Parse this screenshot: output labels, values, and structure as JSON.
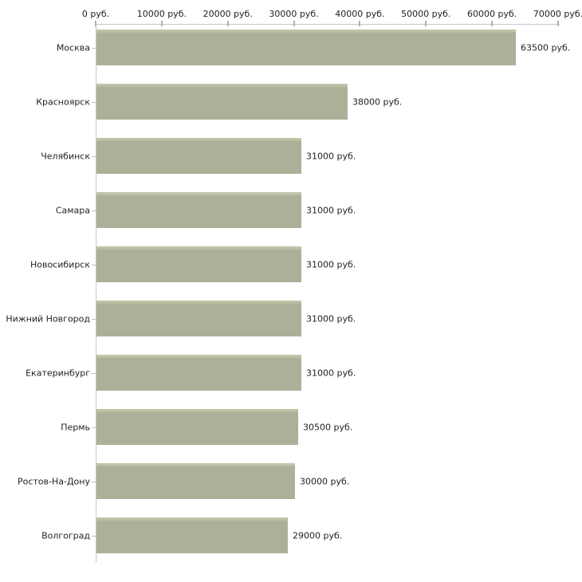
{
  "chart_data": {
    "type": "bar",
    "orientation": "horizontal",
    "title": "",
    "categories": [
      "Москва",
      "Красноярск",
      "Челябинск",
      "Самара",
      "Новосибирск",
      "Нижний Новгород",
      "Екатеринбург",
      "Пермь",
      "Ростов-На-Дону",
      "Волгоград"
    ],
    "values": [
      63500,
      38000,
      31000,
      31000,
      31000,
      31000,
      31000,
      30500,
      30000,
      29000
    ],
    "value_labels": [
      "63500 руб.",
      "38000 руб.",
      "31000 руб.",
      "31000 руб.",
      "31000 руб.",
      "31000 руб.",
      "31000 руб.",
      "30500 руб.",
      "30000 руб.",
      "29000 руб."
    ],
    "x_axis": {
      "position": "top",
      "min": 0,
      "max": 70000,
      "tick_interval": 10000,
      "tick_labels": [
        "0 руб.",
        "10000 руб.",
        "20000 руб.",
        "30000 руб.",
        "40000 руб.",
        "50000 руб.",
        "60000 руб.",
        "70000 руб."
      ]
    },
    "ylabel": "",
    "xlabel": "",
    "grid": false,
    "legend": null,
    "colors": {
      "bar": "#abb198",
      "bar_highlight": "#c2c4a8",
      "axis_line": "#c6c6c6",
      "axis_tick": "#b3b58c",
      "category_tick": "#c2c2b0",
      "text": "#222222",
      "background": "#ffffff"
    }
  }
}
